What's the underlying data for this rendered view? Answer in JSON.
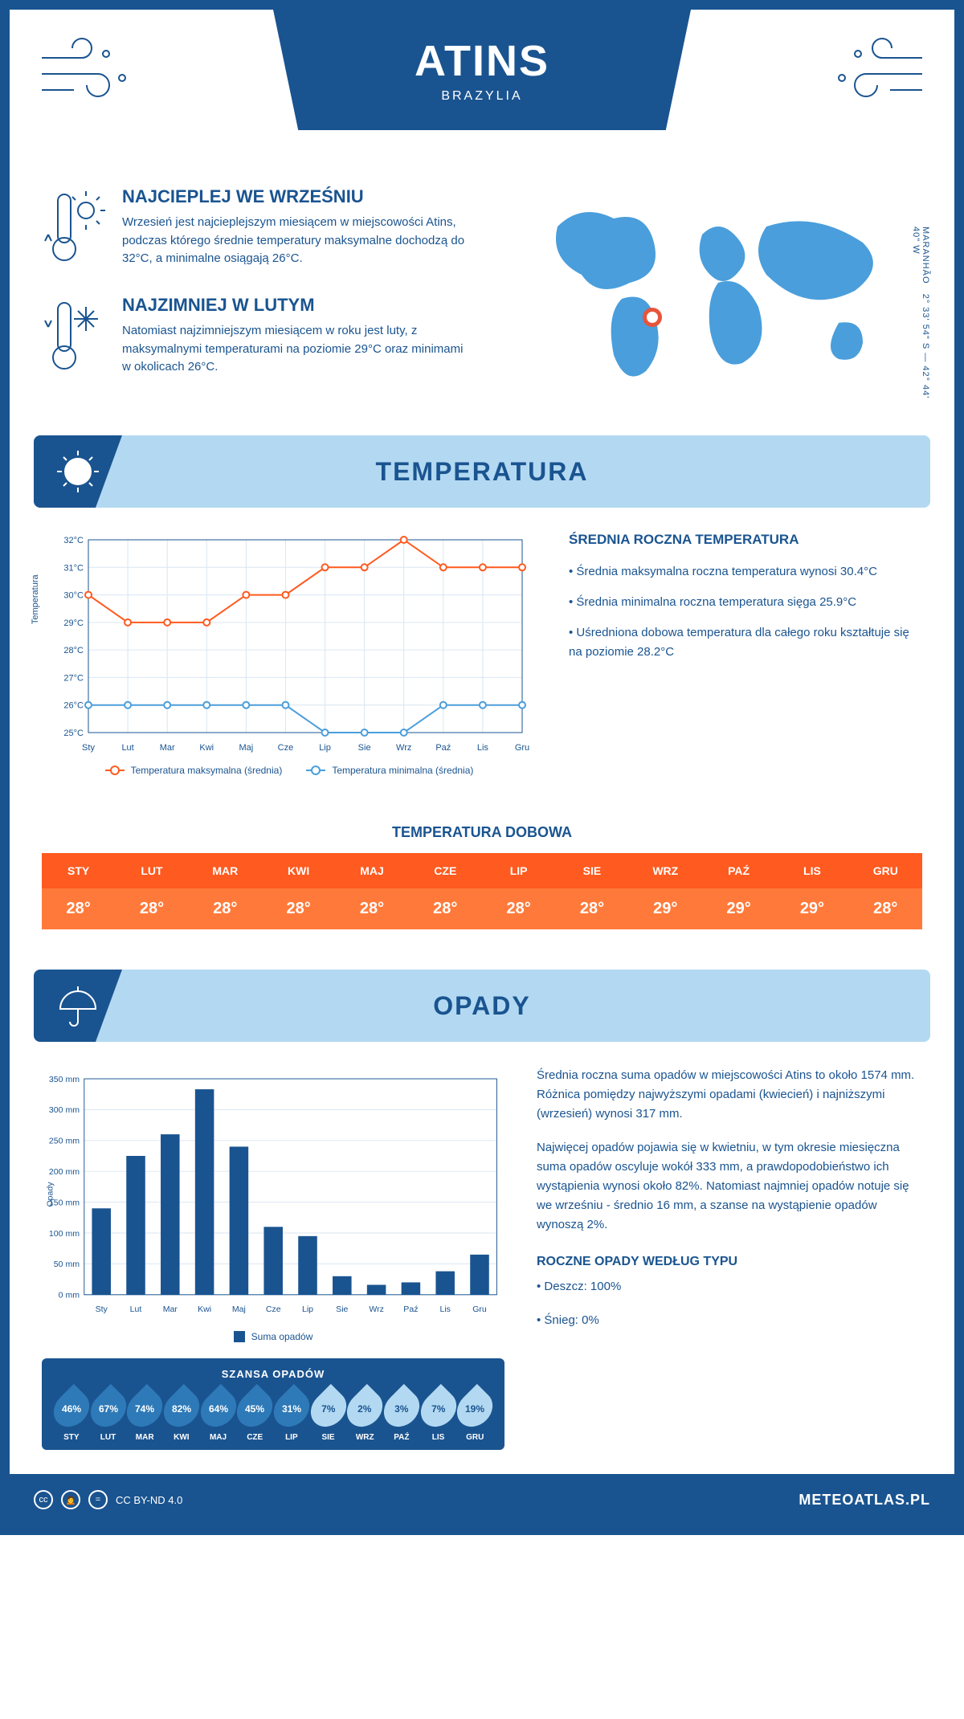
{
  "header": {
    "title": "ATINS",
    "subtitle": "BRAZYLIA"
  },
  "coords": {
    "lat": "2° 33' 54\" S",
    "lon": "42° 44' 40\" W",
    "region": "MARANHÃO"
  },
  "marker": {
    "left_pct": 34,
    "top_pct": 58
  },
  "intro": {
    "hot": {
      "title": "NAJCIEPLEJ WE WRZEŚNIU",
      "text": "Wrzesień jest najcieplejszym miesiącem w miejscowości Atins, podczas którego średnie temperatury maksymalne dochodzą do 32°C, a minimalne osiągają 26°C."
    },
    "cold": {
      "title": "NAJZIMNIEJ W LUTYM",
      "text": "Natomiast najzimniejszym miesiącem w roku jest luty, z maksymalnymi temperaturami na poziomie 29°C oraz minimami w okolicach 26°C."
    }
  },
  "sections": {
    "temperature": "TEMPERATURA",
    "rain": "OPADY"
  },
  "months": [
    "Sty",
    "Lut",
    "Mar",
    "Kwi",
    "Maj",
    "Cze",
    "Lip",
    "Sie",
    "Wrz",
    "Paź",
    "Lis",
    "Gru"
  ],
  "months_upper": [
    "STY",
    "LUT",
    "MAR",
    "KWI",
    "MAJ",
    "CZE",
    "LIP",
    "SIE",
    "WRZ",
    "PAŹ",
    "LIS",
    "GRU"
  ],
  "temp_chart": {
    "type": "line",
    "ylabel": "Temperatura",
    "ylim": [
      25,
      32
    ],
    "ytick_step": 1,
    "ytick_suffix": "°C",
    "grid_color": "#d9e6f2",
    "axis_color": "#1a5490",
    "label_fontsize": 11,
    "series": [
      {
        "name": "Temperatura maksymalna (średnia)",
        "color": "#ff5a1f",
        "values": [
          30,
          29,
          29,
          29,
          30,
          30,
          31,
          31,
          32,
          31,
          31,
          31
        ]
      },
      {
        "name": "Temperatura minimalna (średnia)",
        "color": "#4a9edb",
        "values": [
          26,
          26,
          26,
          26,
          26,
          26,
          25,
          25,
          25,
          26,
          26,
          26
        ]
      }
    ]
  },
  "temp_info": {
    "title": "ŚREDNIA ROCZNA TEMPERATURA",
    "bullets": [
      "• Średnia maksymalna roczna temperatura wynosi 30.4°C",
      "• Średnia minimalna roczna temperatura sięga 25.9°C",
      "• Uśredniona dobowa temperatura dla całego roku kształtuje się na poziomie 28.2°C"
    ]
  },
  "daily": {
    "title": "TEMPERATURA DOBOWA",
    "head_bg": "#ff5a1f",
    "val_bg": "#ff7a3a",
    "values": [
      "28°",
      "28°",
      "28°",
      "28°",
      "28°",
      "28°",
      "28°",
      "28°",
      "29°",
      "29°",
      "29°",
      "28°"
    ]
  },
  "rain_chart": {
    "type": "bar",
    "ylabel": "Opady",
    "ylim": [
      0,
      350
    ],
    "ytick_step": 50,
    "ytick_suffix": " mm",
    "bar_color": "#1a5490",
    "grid_color": "#d9e6f2",
    "axis_color": "#1a5490",
    "legend": "Suma opadów",
    "values": [
      140,
      225,
      260,
      333,
      240,
      110,
      95,
      30,
      16,
      20,
      38,
      65
    ]
  },
  "rain_info": {
    "p1": "Średnia roczna suma opadów w miejscowości Atins to około 1574 mm. Różnica pomiędzy najwyższymi opadami (kwiecień) i najniższymi (wrzesień) wynosi 317 mm.",
    "p2": "Najwięcej opadów pojawia się w kwietniu, w tym okresie miesięczna suma opadów oscyluje wokół 333 mm, a prawdopodobieństwo ich wystąpienia wynosi około 82%. Natomiast najmniej opadów notuje się we wrześniu - średnio 16 mm, a szanse na wystąpienie opadów wynoszą 2%.",
    "type_title": "ROCZNE OPADY WEDŁUG TYPU",
    "type_bullets": [
      "• Deszcz: 100%",
      "• Śnieg: 0%"
    ]
  },
  "chance": {
    "title": "SZANSA OPADÓW",
    "values": [
      46,
      67,
      74,
      82,
      64,
      45,
      31,
      7,
      2,
      3,
      7,
      19
    ],
    "color_high": "#2e7ab8",
    "color_low": "#b3d9f2"
  },
  "footer": {
    "license": "CC BY-ND 4.0",
    "site": "METEOATLAS.PL"
  }
}
